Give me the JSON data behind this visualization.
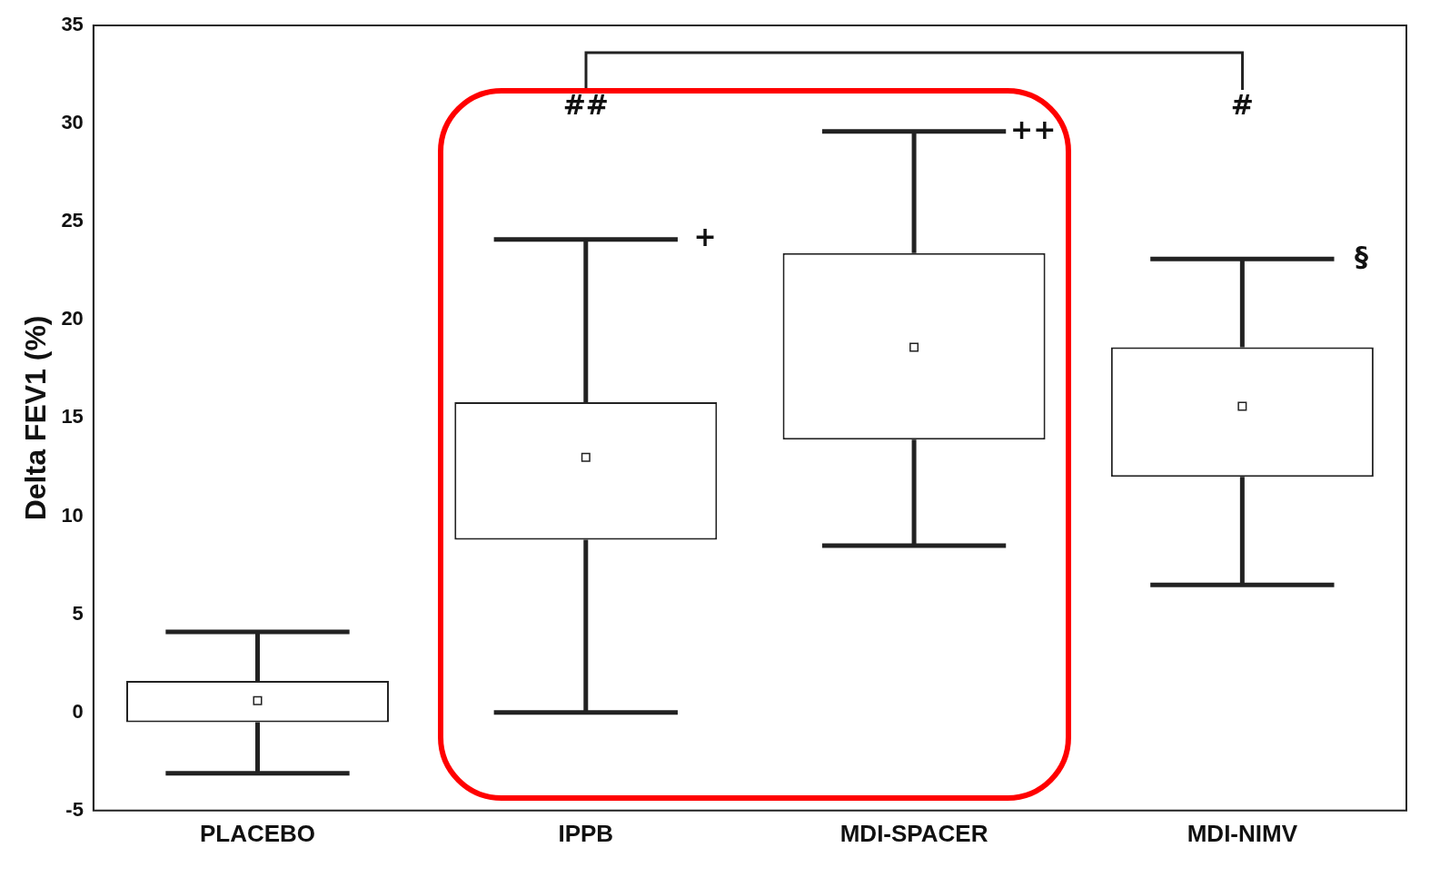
{
  "chart_data": {
    "type": "box",
    "ylabel": "Delta FEV1 (%)",
    "categories": [
      "PLACEBO",
      "IPPB",
      "MDI-SPACER",
      "MDI-NIMV"
    ],
    "boxes": [
      {
        "low": -3.1,
        "q1": -0.5,
        "median": 0.6,
        "q3": 1.6,
        "high": 4.1
      },
      {
        "low": 0,
        "q1": 8.8,
        "median": 13,
        "q3": 15.8,
        "high": 24.1
      },
      {
        "low": 8.5,
        "q1": 13.9,
        "median": 18.6,
        "q3": 23.4,
        "high": 29.6
      },
      {
        "low": 6.5,
        "q1": 12,
        "median": 15.6,
        "q3": 18.6,
        "high": 23.1
      }
    ],
    "ylim": [
      -5,
      35
    ],
    "yticks": [
      -5,
      0,
      5,
      10,
      15,
      20,
      25,
      30,
      35
    ],
    "grid": false,
    "legend": false,
    "annotations": [
      "##",
      "+",
      "++",
      "#",
      "§"
    ]
  }
}
